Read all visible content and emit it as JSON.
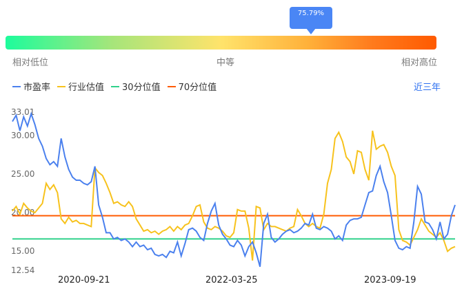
{
  "tooltip": {
    "value": "75.79%"
  },
  "scale": {
    "low": "相对低位",
    "mid": "中等",
    "high": "相对高位"
  },
  "legend": [
    {
      "label": "市盈率",
      "color": "#4a80ee"
    },
    {
      "label": "行业估值",
      "color": "#f7c21c"
    },
    {
      "label": "30分位值",
      "color": "#2fd18a"
    },
    {
      "label": "70分位值",
      "color": "#ff5a00"
    }
  ],
  "range_link": "近三年",
  "chart_data": {
    "type": "line",
    "y_ticks": [
      "33.01",
      "30.00",
      "25.00",
      "20.00",
      "15.00",
      "12.54"
    ],
    "x_ticks": [
      "2020-09-21",
      "2022-03-25",
      "2023-09-19"
    ],
    "ylim": [
      12.54,
      33.01
    ],
    "percentile_30": 16.6,
    "percentile_70": 19.6,
    "series": [
      {
        "name": "市盈率",
        "color": "#4a80ee",
        "values": [
          31.8,
          32.6,
          30.6,
          32.4,
          31.2,
          32.8,
          31.4,
          29.6,
          28.6,
          27.0,
          26.2,
          26.6,
          26.0,
          29.6,
          27.2,
          25.6,
          24.6,
          24.2,
          24.2,
          23.8,
          23.6,
          24.0,
          26.0,
          21.0,
          19.4,
          17.4,
          17.4,
          16.6,
          16.8,
          16.4,
          16.6,
          16.2,
          15.6,
          16.2,
          15.6,
          15.8,
          15.2,
          15.4,
          14.6,
          14.4,
          14.6,
          14.2,
          15.0,
          14.8,
          16.2,
          14.4,
          16.0,
          17.8,
          18.0,
          17.6,
          16.8,
          16.4,
          18.6,
          20.2,
          21.2,
          18.4,
          17.2,
          16.6,
          15.8,
          15.6,
          16.4,
          15.8,
          14.4,
          15.6,
          16.2,
          14.8,
          13.0,
          18.6,
          19.8,
          16.8,
          16.2,
          16.6,
          17.2,
          17.6,
          17.8,
          17.4,
          17.6,
          18.0,
          18.6,
          18.4,
          19.8,
          18.0,
          17.8,
          18.2,
          18.0,
          17.6,
          16.6,
          17.0,
          16.4,
          18.4,
          19.0,
          19.2,
          19.2,
          19.4,
          21.0,
          22.6,
          22.8,
          24.8,
          26.0,
          24.0,
          22.6,
          19.6,
          16.4,
          15.4,
          15.2,
          15.6,
          15.4,
          18.8,
          23.4,
          22.4,
          18.8,
          18.6,
          17.8,
          16.6,
          18.8,
          16.6,
          17.2,
          19.6,
          21.0
        ]
      },
      {
        "name": "行业估值",
        "color": "#f7c21c",
        "values": [
          20.2,
          20.8,
          19.8,
          21.2,
          20.6,
          20.2,
          20.0,
          20.6,
          21.2,
          23.8,
          23.0,
          23.6,
          22.6,
          19.2,
          18.6,
          19.4,
          18.8,
          19.0,
          18.6,
          18.6,
          18.4,
          18.2,
          25.8,
          25.2,
          24.8,
          23.8,
          22.6,
          21.2,
          21.4,
          21.0,
          20.8,
          21.4,
          20.8,
          19.2,
          18.4,
          17.6,
          17.8,
          17.4,
          17.6,
          17.2,
          17.6,
          17.8,
          18.2,
          17.6,
          18.2,
          17.8,
          18.4,
          18.6,
          19.6,
          20.8,
          21.0,
          18.8,
          18.0,
          17.8,
          18.2,
          18.0,
          17.6,
          17.0,
          16.8,
          17.4,
          20.4,
          20.2,
          20.2,
          18.0,
          13.8,
          20.8,
          20.6,
          17.8,
          18.6,
          18.2,
          18.2,
          18.0,
          17.8,
          17.6,
          18.0,
          18.2,
          20.4,
          19.6,
          18.6,
          18.2,
          18.6,
          18.2,
          18.0,
          19.8,
          23.8,
          25.6,
          29.6,
          30.4,
          29.2,
          27.2,
          26.6,
          25.0,
          28.0,
          27.8,
          25.6,
          24.2,
          30.6,
          28.2,
          28.6,
          28.8,
          27.8,
          26.0,
          24.8,
          17.8,
          16.4,
          16.2,
          15.8,
          16.8,
          17.8,
          19.2,
          18.4,
          17.6,
          17.2,
          16.8,
          17.4,
          16.4,
          15.0,
          15.4,
          15.6
        ]
      }
    ]
  }
}
